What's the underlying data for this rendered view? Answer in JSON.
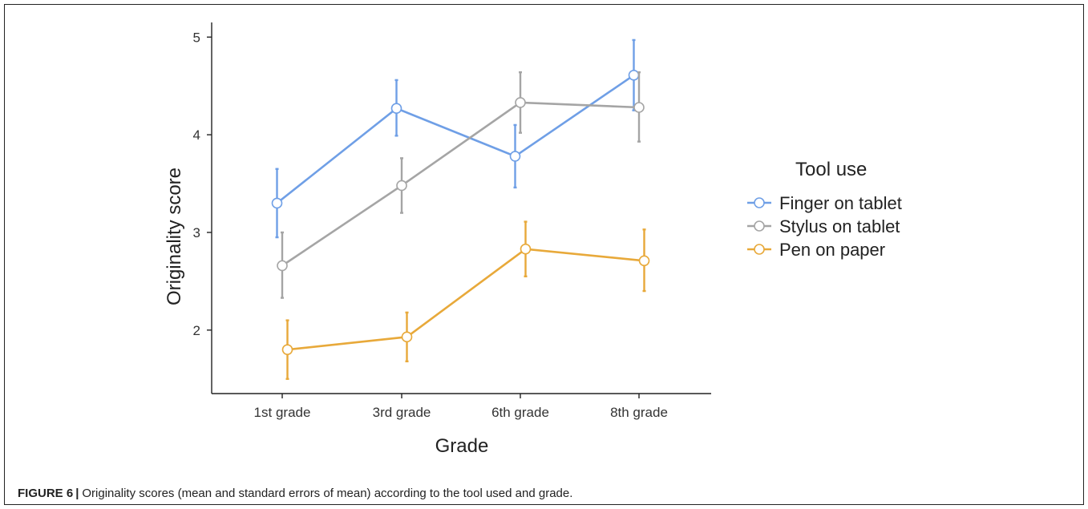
{
  "chart_data": {
    "type": "line",
    "xlabel": "Grade",
    "ylabel": "Originality score",
    "categories": [
      "1st grade",
      "3rd grade",
      "6th grade",
      "8th grade"
    ],
    "ylim": [
      1.35,
      5.15
    ],
    "yticks": [
      2,
      3,
      4,
      5
    ],
    "grid": false,
    "legend": {
      "title": "Tool use",
      "position": "right"
    },
    "series": [
      {
        "name": "Finger on tablet",
        "color": "#6f9fe6",
        "values": [
          3.3,
          4.27,
          3.78,
          4.61
        ],
        "err_low": [
          2.95,
          3.99,
          3.46,
          4.25
        ],
        "err_high": [
          3.65,
          4.56,
          4.1,
          4.97
        ]
      },
      {
        "name": "Stylus on tablet",
        "color": "#a5a5a5",
        "values": [
          2.66,
          3.48,
          4.33,
          4.28
        ],
        "err_low": [
          2.33,
          3.2,
          4.02,
          3.93
        ],
        "err_high": [
          3.0,
          3.76,
          4.64,
          4.64
        ]
      },
      {
        "name": "Pen on paper",
        "color": "#e8a93a",
        "values": [
          1.8,
          1.93,
          2.83,
          2.71
        ],
        "err_low": [
          1.5,
          1.68,
          2.55,
          2.4
        ],
        "err_high": [
          2.1,
          2.18,
          3.11,
          3.03
        ]
      }
    ]
  },
  "caption": {
    "label": "FIGURE 6",
    "separator": "|",
    "text": "Originality scores (mean and standard errors of mean) according to the tool used and grade."
  }
}
